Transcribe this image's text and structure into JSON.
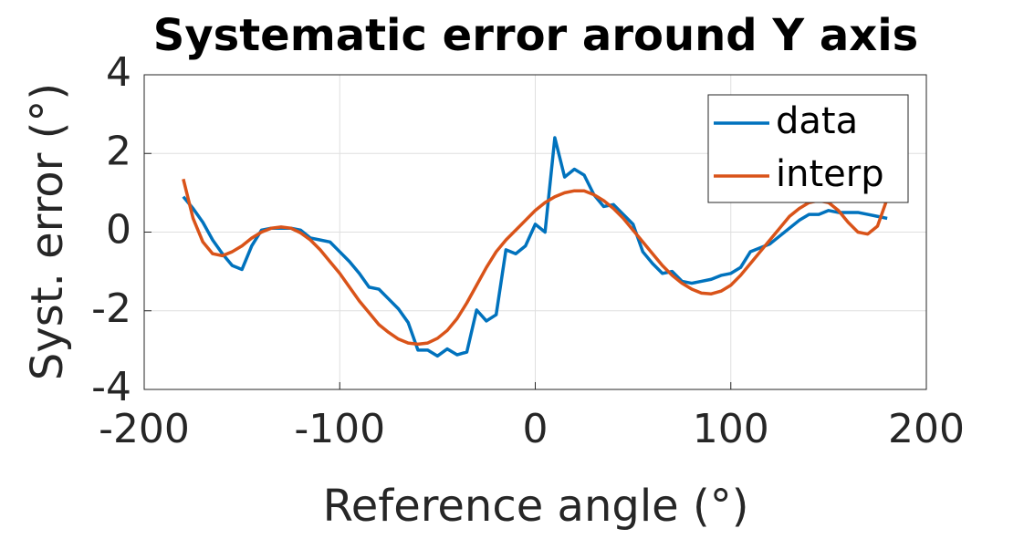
{
  "chart_data": {
    "type": "line",
    "title": "Systematic error around Y axis",
    "xlabel": "Reference angle (°)",
    "ylabel": "Syst. error (°)",
    "x": [
      -180,
      -175,
      -170,
      -165,
      -160,
      -155,
      -150,
      -145,
      -140,
      -135,
      -130,
      -125,
      -120,
      -115,
      -110,
      -105,
      -100,
      -95,
      -90,
      -85,
      -80,
      -75,
      -70,
      -65,
      -60,
      -55,
      -50,
      -45,
      -40,
      -35,
      -30,
      -25,
      -20,
      -15,
      -10,
      -5,
      0,
      5,
      10,
      15,
      20,
      25,
      30,
      35,
      40,
      45,
      50,
      55,
      60,
      65,
      70,
      75,
      80,
      85,
      90,
      95,
      100,
      105,
      110,
      115,
      120,
      125,
      130,
      135,
      140,
      145,
      150,
      155,
      160,
      165,
      170,
      175,
      180
    ],
    "series": [
      {
        "name": "data",
        "color": "#0072bd",
        "values": [
          0.9,
          0.6,
          0.25,
          -0.2,
          -0.55,
          -0.85,
          -0.95,
          -0.35,
          0.05,
          0.1,
          0.1,
          0.1,
          0.05,
          -0.15,
          -0.2,
          -0.25,
          -0.5,
          -0.75,
          -1.05,
          -1.4,
          -1.45,
          -1.7,
          -1.95,
          -2.3,
          -3.0,
          -3.0,
          -3.15,
          -2.97,
          -3.12,
          -3.05,
          -1.98,
          -2.26,
          -2.1,
          -0.45,
          -0.55,
          -0.35,
          0.2,
          0.0,
          2.4,
          1.4,
          1.6,
          1.45,
          0.95,
          0.65,
          0.7,
          0.45,
          0.2,
          -0.5,
          -0.8,
          -1.05,
          -1.0,
          -1.25,
          -1.3,
          -1.25,
          -1.2,
          -1.1,
          -1.05,
          -0.9,
          -0.5,
          -0.4,
          -0.3,
          -0.1,
          0.1,
          0.3,
          0.45,
          0.45,
          0.55,
          0.5,
          0.5,
          0.5,
          0.45,
          0.4,
          0.35
        ]
      },
      {
        "name": "interp",
        "color": "#d95319",
        "values": [
          1.35,
          0.35,
          -0.25,
          -0.55,
          -0.6,
          -0.5,
          -0.35,
          -0.15,
          0.0,
          0.1,
          0.13,
          0.1,
          -0.02,
          -0.2,
          -0.45,
          -0.75,
          -1.05,
          -1.4,
          -1.75,
          -2.05,
          -2.35,
          -2.55,
          -2.72,
          -2.82,
          -2.85,
          -2.82,
          -2.7,
          -2.5,
          -2.2,
          -1.8,
          -1.35,
          -0.9,
          -0.5,
          -0.2,
          0.05,
          0.3,
          0.55,
          0.75,
          0.9,
          1.0,
          1.05,
          1.05,
          0.95,
          0.8,
          0.6,
          0.35,
          0.05,
          -0.25,
          -0.55,
          -0.85,
          -1.1,
          -1.3,
          -1.45,
          -1.55,
          -1.57,
          -1.5,
          -1.35,
          -1.1,
          -0.8,
          -0.5,
          -0.2,
          0.1,
          0.4,
          0.6,
          0.75,
          0.8,
          0.75,
          0.55,
          0.25,
          0.0,
          -0.05,
          0.15,
          0.85
        ]
      }
    ],
    "xlim": [
      -200,
      200
    ],
    "xticks": [
      -200,
      -100,
      0,
      100,
      200
    ],
    "ylim": [
      -4,
      4
    ],
    "yticks": [
      -4,
      -2,
      0,
      2,
      4
    ],
    "grid": true,
    "legend": "northeast"
  }
}
